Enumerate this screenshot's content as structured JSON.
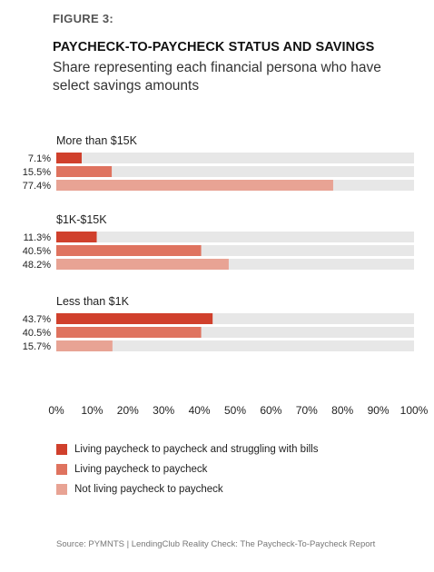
{
  "figure_label": "FIGURE 3:",
  "title": "PAYCHECK-TO-PAYCHECK STATUS AND SAVINGS",
  "subtitle": "Share representing each financial persona who have select savings amounts",
  "source": "Source: PYMNTS | LendingClub   Reality Check: The Paycheck-To-Paycheck Report",
  "chart_data": {
    "type": "bar",
    "orientation": "horizontal",
    "xlim": [
      0,
      100
    ],
    "x_ticks": [
      "0%",
      "10%",
      "20%",
      "30%",
      "40%",
      "50%",
      "60%",
      "70%",
      "80%",
      "90%",
      "100%"
    ],
    "grid": false,
    "legend_placement": "bottom",
    "groups": [
      {
        "label": "More than $15K",
        "values": [
          7.1,
          15.5,
          77.4
        ],
        "value_labels": [
          "7.1%",
          "15.5%",
          "77.4%"
        ]
      },
      {
        "label": "$1K-$15K",
        "values": [
          11.3,
          40.5,
          48.2
        ],
        "value_labels": [
          "11.3%",
          "40.5%",
          "48.2%"
        ]
      },
      {
        "label": "Less than $1K",
        "values": [
          43.7,
          40.5,
          15.7
        ],
        "value_labels": [
          "43.7%",
          "40.5%",
          "15.7%"
        ]
      }
    ],
    "series": [
      {
        "name": "Living paycheck to paycheck and struggling with bills",
        "color": "#d0402c"
      },
      {
        "name": "Living paycheck to paycheck",
        "color": "#df735f"
      },
      {
        "name": "Not living paycheck to paycheck",
        "color": "#e8a394"
      }
    ],
    "track_color": "#e7e7e7"
  }
}
